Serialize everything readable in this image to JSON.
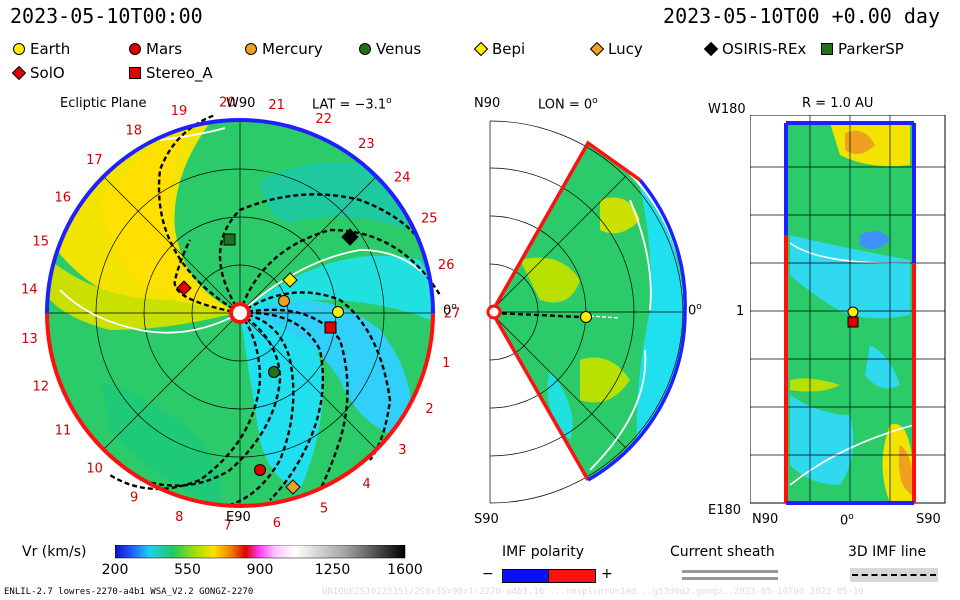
{
  "header": {
    "left_time": "2023-05-10T00:00",
    "right_time": "2023-05-10T00 +0.00 day"
  },
  "legend": {
    "bodies": [
      {
        "name": "Earth",
        "shape": "circle",
        "color": "#ffee00"
      },
      {
        "name": "Mars",
        "shape": "circle",
        "color": "#e00000"
      },
      {
        "name": "Mercury",
        "shape": "circle",
        "color": "#f0a020"
      },
      {
        "name": "Venus",
        "shape": "circle",
        "color": "#207020"
      },
      {
        "name": "Bepi",
        "shape": "diamond",
        "color": "#ffee00"
      },
      {
        "name": "Lucy",
        "shape": "diamond",
        "color": "#f0a020"
      },
      {
        "name": "OSIRIS-REx",
        "shape": "diamond",
        "color": "#000000"
      },
      {
        "name": "ParkerSP",
        "shape": "square",
        "color": "#207020"
      },
      {
        "name": "SolO",
        "shape": "diamond",
        "color": "#e00000"
      },
      {
        "name": "Stereo_A",
        "shape": "square",
        "color": "#e00000"
      }
    ]
  },
  "panels": {
    "ecliptic": {
      "title": "Ecliptic Plane",
      "top_label": "W90",
      "bottom_label": "E90",
      "right_label": "0",
      "deg": "o",
      "lat": "LAT = −3.1",
      "carrington": [
        "1",
        "2",
        "3",
        "4",
        "5",
        "6",
        "7",
        "8",
        "9",
        "10",
        "11",
        "12",
        "13",
        "14",
        "15",
        "16",
        "17",
        "18",
        "19",
        "20",
        "21",
        "22",
        "23",
        "24",
        "25",
        "26",
        "27"
      ]
    },
    "meridional": {
      "top_label": "N90",
      "bottom_label": "S90",
      "lon": "LON = 0",
      "right_label": "0",
      "deg": "o"
    },
    "map": {
      "top_label": "W180",
      "bottom_label": "E180",
      "left_label": "1",
      "r": "R = 1.0 AU",
      "x_left": "N90",
      "x_mid": "0",
      "x_right": "S90",
      "deg": "o"
    }
  },
  "colorbar": {
    "label": "Vr (km/s)",
    "ticks": [
      "200",
      "550",
      "900",
      "1250",
      "1600"
    ]
  },
  "imf": {
    "label": "IMF polarity",
    "minus": "−",
    "plus": "+"
  },
  "sheath": {
    "label": "Current sheath"
  },
  "imf3d": {
    "label": "3D IMF line"
  },
  "footer": {
    "left": "ENLIL-2.7 lowres-2270-a4b1 WSA_V2.2 GONGZ-2270",
    "right": "UNIQUE2S10223351/2S8x3Sx90x1:2270-a4b1.16 ...nosplunrun1ed...g53d6d2.gongz..2023-05-10T00    2023-05-10"
  },
  "chart_data": {
    "type": "heatmap",
    "title": "Ecliptic Plane",
    "colorbar": {
      "label": "Vr (km/s)",
      "min": 200,
      "max": 1600,
      "ticks": [
        200,
        550,
        900,
        1250,
        1600
      ]
    },
    "bodies_ecliptic": [
      {
        "name": "Earth",
        "lon_deg": 0,
        "r_au": 1.0
      },
      {
        "name": "Mars",
        "lon_deg": -62,
        "r_au": 1.55
      },
      {
        "name": "Mercury",
        "lon_deg": 5,
        "r_au": 0.44
      },
      {
        "name": "Venus",
        "lon_deg": -62,
        "r_au": 0.72
      },
      {
        "name": "Bepi",
        "lon_deg": 33,
        "r_au": 0.62
      },
      {
        "name": "Lucy",
        "lon_deg": -55,
        "r_au": 1.78
      },
      {
        "name": "OSIRIS-REx",
        "lon_deg": 43,
        "r_au": 1.38
      },
      {
        "name": "ParkerSP",
        "lon_deg": 103,
        "r_au": 0.78
      },
      {
        "name": "SolO",
        "lon_deg": 160,
        "r_au": 0.62
      },
      {
        "name": "Stereo_A",
        "lon_deg": -12,
        "r_au": 0.96
      }
    ]
  }
}
